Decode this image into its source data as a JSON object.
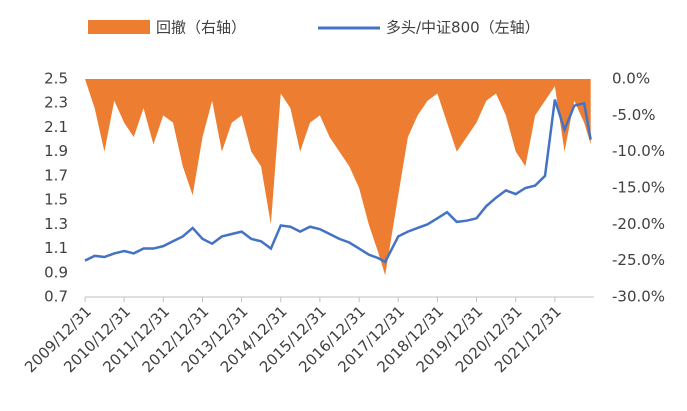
{
  "chart_data": {
    "type": "line",
    "x": [
      "2009/12/31",
      "2010/03/31",
      "2010/06/30",
      "2010/09/30",
      "2010/12/31",
      "2011/03/31",
      "2011/06/30",
      "2011/09/30",
      "2011/12/31",
      "2012/03/31",
      "2012/06/30",
      "2012/09/30",
      "2012/12/31",
      "2013/03/31",
      "2013/06/30",
      "2013/09/30",
      "2013/12/31",
      "2014/03/31",
      "2014/06/30",
      "2014/09/30",
      "2014/12/31",
      "2015/03/31",
      "2015/06/30",
      "2015/09/30",
      "2015/12/31",
      "2016/03/31",
      "2016/06/30",
      "2016/09/30",
      "2016/12/31",
      "2017/03/31",
      "2017/06/30",
      "2017/08/31",
      "2017/12/31",
      "2018/03/31",
      "2018/06/30",
      "2018/09/30",
      "2018/12/31",
      "2019/03/31",
      "2019/06/30",
      "2019/09/30",
      "2019/12/31",
      "2020/03/31",
      "2020/06/30",
      "2020/09/30",
      "2020/12/31",
      "2021/03/31",
      "2021/06/30",
      "2021/09/30",
      "2021/12/31",
      "2022/03/31",
      "2022/06/30",
      "2022/09/30",
      "2022/11/30"
    ],
    "series": [
      {
        "name": "回撤（右轴）",
        "type": "area",
        "color": "#ed7d31",
        "axis": "y2",
        "values": [
          0,
          -4,
          -10,
          -3,
          -6,
          -8,
          -4,
          -9,
          -5,
          -6,
          -12,
          -16,
          -8,
          -3,
          -10,
          -6,
          -5,
          -10,
          -12,
          -20,
          -2,
          -4,
          -10,
          -6,
          -5,
          -8,
          -10,
          -12,
          -15,
          -20,
          -24,
          -27,
          -16,
          -8,
          -5,
          -3,
          -2,
          -6,
          -10,
          -8,
          -6,
          -3,
          -2,
          -5,
          -10,
          -12,
          -5,
          -3,
          -1,
          -10,
          -3,
          -6,
          -9
        ]
      },
      {
        "name": "多头/中证800（左轴）",
        "type": "line",
        "color": "#4472c4",
        "values": [
          1.0,
          1.04,
          1.03,
          1.06,
          1.08,
          1.06,
          1.1,
          1.1,
          1.12,
          1.16,
          1.2,
          1.27,
          1.18,
          1.14,
          1.2,
          1.22,
          1.24,
          1.18,
          1.16,
          1.1,
          1.29,
          1.28,
          1.24,
          1.28,
          1.26,
          1.22,
          1.18,
          1.15,
          1.1,
          1.05,
          1.02,
          0.99,
          1.2,
          1.24,
          1.27,
          1.3,
          1.35,
          1.4,
          1.32,
          1.33,
          1.35,
          1.45,
          1.52,
          1.58,
          1.55,
          1.6,
          1.62,
          1.7,
          2.33,
          2.08,
          2.28,
          2.3,
          2.0
        ]
      }
    ],
    "xlim": [
      "2009/12/31",
      "2022/12/31"
    ],
    "xticks": [
      "2009/12/31",
      "2010/12/31",
      "2011/12/31",
      "2012/12/31",
      "2013/12/31",
      "2014/12/31",
      "2015/12/31",
      "2016/12/31",
      "2017/12/31",
      "2018/12/31",
      "2019/12/31",
      "2020/12/31",
      "2021/12/31"
    ],
    "ylim": [
      0.7,
      2.5
    ],
    "yticks": [
      0.7,
      0.9,
      1.1,
      1.3,
      1.5,
      1.7,
      1.9,
      2.1,
      2.3,
      2.5
    ],
    "y2lim": [
      -30,
      0
    ],
    "y2ticks": [
      {
        "value": 0,
        "label": "0.0%"
      },
      {
        "value": -5,
        "label": "-5.0%"
      },
      {
        "value": -10,
        "label": "-10.0%"
      },
      {
        "value": -15,
        "label": "-15.0%"
      },
      {
        "value": -20,
        "label": "-20.0%"
      },
      {
        "value": -25,
        "label": "-25.0%"
      },
      {
        "value": -30,
        "label": "-30.0%"
      }
    ]
  }
}
